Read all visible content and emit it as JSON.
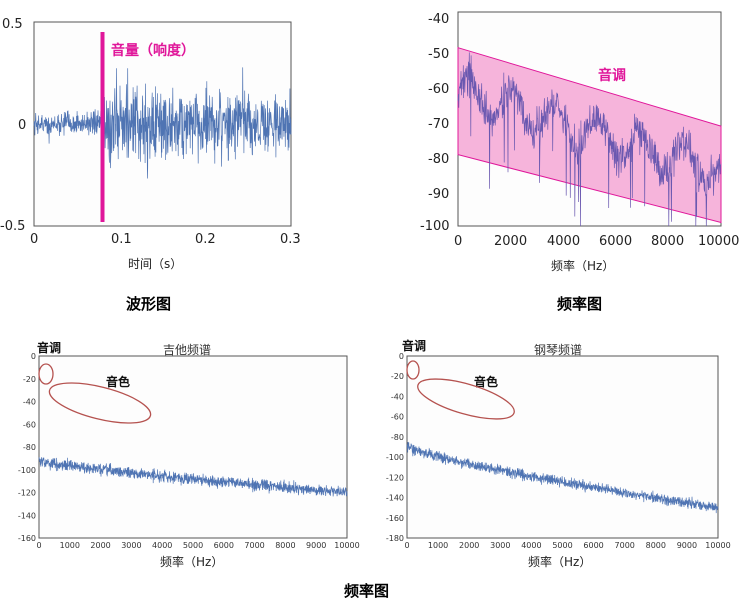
{
  "captions": {
    "waveform": "波形图",
    "freq_top": "频率图",
    "freq_bottom": "频率图"
  },
  "colors": {
    "signal": "#4f74b3",
    "magenta": "#e0179a",
    "band_fill": "#f39bcf",
    "ellipse": "#b5524f",
    "frame": "#555555"
  },
  "chart_data": [
    {
      "id": "waveform",
      "type": "line",
      "title": "",
      "xlabel": "时间（s）",
      "ylabel": "",
      "xlim": [
        0,
        0.3
      ],
      "ylim": [
        -0.5,
        0.5
      ],
      "xticks": [
        "0",
        "0.1",
        "0.2",
        "0.3"
      ],
      "yticks": [
        "0.5",
        "0",
        "-0.5"
      ],
      "series": [
        {
          "description": "noisy audio waveform, near 0 before onset, amplitude ~0.35 after onset",
          "onset_s": 0.08,
          "pre_onset_amplitude": 0.1,
          "post_onset_amplitude": 0.35
        }
      ],
      "annotations": [
        {
          "text": "音量（响度）",
          "marker_x": 0.08
        }
      ]
    },
    {
      "id": "spectrum",
      "type": "line",
      "title": "",
      "xlabel": "频率（Hz）",
      "ylabel": "",
      "xlim": [
        0,
        10000
      ],
      "ylim": [
        -100,
        -40
      ],
      "xticks": [
        "0",
        "2000",
        "4000",
        "6000",
        "8000",
        "10000"
      ],
      "yticks": [
        "-40",
        "-50",
        "-60",
        "-70",
        "-80",
        "-90",
        "-100"
      ],
      "series": [
        {
          "description": "noisy spectrum declining with frequency",
          "trend_start": -62,
          "trend_end": -85,
          "spread": 9
        }
      ],
      "band": {
        "upper": [
          -50,
          -72
        ],
        "lower": [
          -80,
          -99
        ]
      },
      "annotations": [
        {
          "text": "音调"
        }
      ]
    },
    {
      "id": "guitar",
      "type": "line",
      "title": "吉他频谱",
      "xlabel": "频率（Hz）",
      "ylabel": "",
      "xlim": [
        0,
        10000
      ],
      "ylim": [
        -160,
        0
      ],
      "xticks": [
        "0",
        "1000",
        "2000",
        "3000",
        "4000",
        "5000",
        "6000",
        "7000",
        "8000",
        "9000",
        "10000"
      ],
      "yticks": [
        "0",
        "-20",
        "-40",
        "-60",
        "-80",
        "-100",
        "-120",
        "-140",
        "-160"
      ],
      "series": [
        {
          "description": "harmonic spectrum with spikes",
          "fundamental_hz": 220,
          "base_start": -92,
          "base_end": -120,
          "first_peak": -24,
          "peak_decay_end": -95
        }
      ],
      "annotations": [
        {
          "text": "音调"
        },
        {
          "text": "音色"
        }
      ]
    },
    {
      "id": "piano",
      "type": "line",
      "title": "钢琴频谱",
      "xlabel": "频率（Hz）",
      "ylabel": "",
      "xlim": [
        0,
        10000
      ],
      "ylim": [
        -180,
        0
      ],
      "xticks": [
        "0",
        "1000",
        "2000",
        "3000",
        "4000",
        "5000",
        "6000",
        "7000",
        "8000",
        "9000",
        "10000"
      ],
      "yticks": [
        "0",
        "-20",
        "-40",
        "-60",
        "-80",
        "-100",
        "-120",
        "-140",
        "-160",
        "-180"
      ],
      "series": [
        {
          "description": "harmonic spectrum with spikes",
          "fundamental_hz": 220,
          "base_start": -90,
          "base_end": -150,
          "first_peak": -14,
          "peak_decay_end": -120
        }
      ],
      "annotations": [
        {
          "text": "音调"
        },
        {
          "text": "音色"
        }
      ]
    }
  ]
}
